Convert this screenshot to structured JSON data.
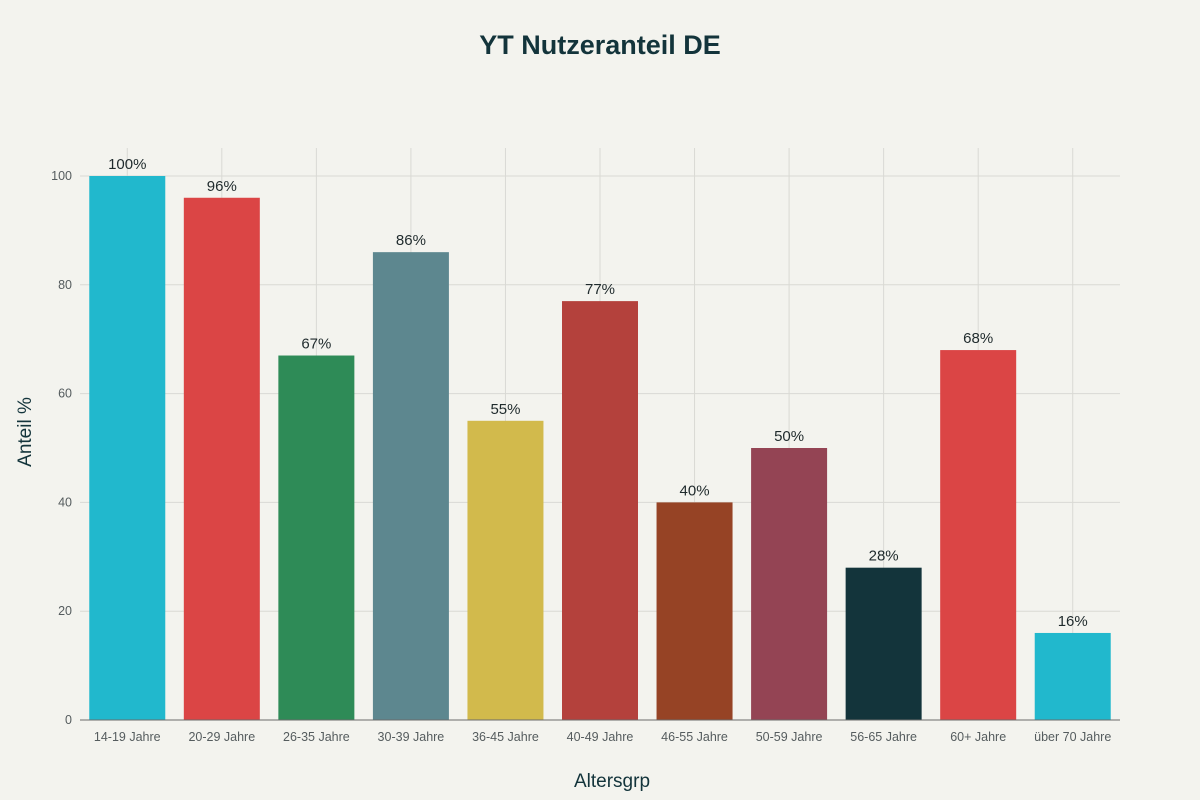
{
  "chart_data": {
    "type": "bar",
    "title": "YT Nutzeranteil DE",
    "xlabel": "Altersgrp",
    "ylabel": "Anteil %",
    "ylim": [
      0,
      100
    ],
    "yticks": [
      0,
      20,
      40,
      60,
      80,
      100
    ],
    "grid": true,
    "categories": [
      "14-19 Jahre",
      "20-29 Jahre",
      "26-35 Jahre",
      "30-39 Jahre",
      "36-45 Jahre",
      "40-49 Jahre",
      "46-55 Jahre",
      "50-59 Jahre",
      "56-65 Jahre",
      "60+ Jahre",
      "über 70 Jahre"
    ],
    "values": [
      100,
      96,
      67,
      86,
      55,
      77,
      40,
      50,
      28,
      68,
      16
    ],
    "data_labels": [
      "100%",
      "96%",
      "67%",
      "86%",
      "55%",
      "77%",
      "40%",
      "50%",
      "28%",
      "68%",
      "16%"
    ],
    "colors": [
      "#21b8cd",
      "#db4545",
      "#2e8b57",
      "#5d878f",
      "#d2ba4c",
      "#b4413c",
      "#964325",
      "#944454",
      "#13343b",
      "#db4545",
      "#21b8cd"
    ]
  }
}
